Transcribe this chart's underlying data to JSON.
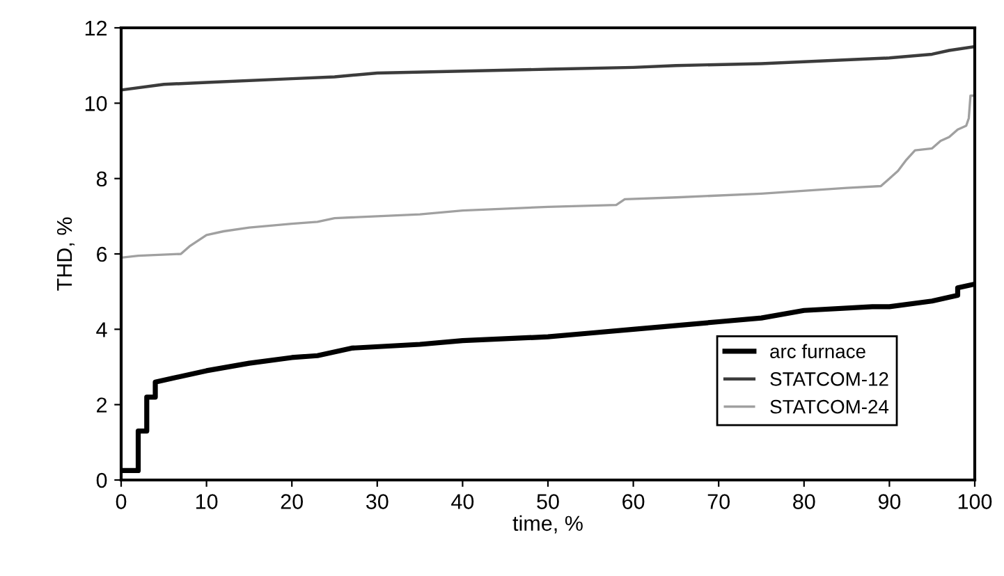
{
  "chart_data": {
    "type": "line",
    "xlabel": "time, %",
    "ylabel": "THD, %",
    "xlim": [
      0,
      100
    ],
    "ylim": [
      0,
      12
    ],
    "xticks": [
      0,
      10,
      20,
      30,
      40,
      50,
      60,
      70,
      80,
      90,
      100
    ],
    "yticks": [
      0,
      2,
      4,
      6,
      8,
      10,
      12
    ],
    "grid": false,
    "legend": "bottom right",
    "marker": "none",
    "line_style": "solid",
    "series": [
      {
        "name": "arc furnace",
        "color": "#000000",
        "x": [
          0,
          2,
          2,
          3,
          3,
          4,
          4,
          6,
          10,
          15,
          20,
          23,
          27,
          35,
          40,
          50,
          55,
          60,
          70,
          75,
          80,
          88,
          90,
          95,
          97,
          98,
          98,
          100
        ],
        "values": [
          0.25,
          0.25,
          1.3,
          1.3,
          2.2,
          2.2,
          2.6,
          2.7,
          2.9,
          3.1,
          3.25,
          3.3,
          3.5,
          3.6,
          3.7,
          3.8,
          3.9,
          4.0,
          4.2,
          4.3,
          4.5,
          4.6,
          4.6,
          4.75,
          4.85,
          4.9,
          5.1,
          5.2
        ]
      },
      {
        "name": "STATCOM-12",
        "color": "#3c3c3c",
        "x": [
          0,
          5,
          10,
          20,
          25,
          30,
          40,
          50,
          60,
          65,
          75,
          85,
          90,
          95,
          97,
          100
        ],
        "values": [
          10.35,
          10.5,
          10.55,
          10.65,
          10.7,
          10.8,
          10.85,
          10.9,
          10.95,
          11.0,
          11.05,
          11.15,
          11.2,
          11.3,
          11.4,
          11.5
        ]
      },
      {
        "name": "STATCOM-24",
        "color": "#a0a0a0",
        "x": [
          0,
          2,
          7,
          8,
          10,
          12,
          15,
          20,
          23,
          25,
          35,
          40,
          50,
          58,
          59,
          65,
          75,
          85,
          89,
          90,
          91,
          92,
          93,
          95,
          96,
          97,
          98,
          99,
          99.3,
          99.5,
          100
        ],
        "values": [
          5.9,
          5.95,
          6.0,
          6.2,
          6.5,
          6.6,
          6.7,
          6.8,
          6.85,
          6.95,
          7.05,
          7.15,
          7.25,
          7.3,
          7.45,
          7.5,
          7.6,
          7.75,
          7.8,
          8.0,
          8.2,
          8.5,
          8.75,
          8.8,
          9.0,
          9.1,
          9.3,
          9.4,
          9.6,
          10.2,
          10.2
        ]
      }
    ]
  }
}
